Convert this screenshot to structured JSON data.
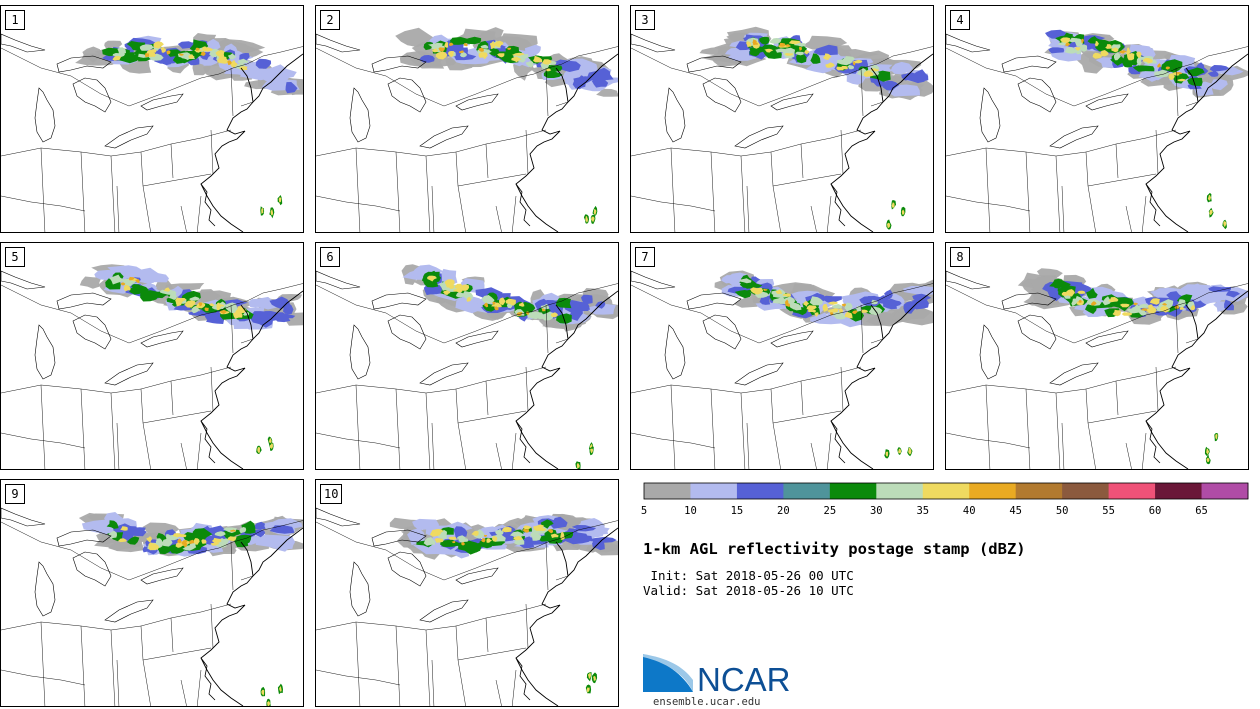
{
  "panels": [
    {
      "label": "1"
    },
    {
      "label": "2"
    },
    {
      "label": "3"
    },
    {
      "label": "4"
    },
    {
      "label": "5"
    },
    {
      "label": "6"
    },
    {
      "label": "7"
    },
    {
      "label": "8"
    },
    {
      "label": "9"
    },
    {
      "label": "10"
    }
  ],
  "colorbar": {
    "bins": [
      {
        "from": 5,
        "to": 10,
        "color": "#a9a9a9"
      },
      {
        "from": 10,
        "to": 15,
        "color": "#b3bbef"
      },
      {
        "from": 15,
        "to": 20,
        "color": "#5661d6"
      },
      {
        "from": 20,
        "to": 25,
        "color": "#4f949b"
      },
      {
        "from": 25,
        "to": 30,
        "color": "#0b8a0b"
      },
      {
        "from": 30,
        "to": 35,
        "color": "#bcdcb9"
      },
      {
        "from": 35,
        "to": 40,
        "color": "#efda60"
      },
      {
        "from": 40,
        "to": 45,
        "color": "#e9aa22"
      },
      {
        "from": 45,
        "to": 50,
        "color": "#b27a2f"
      },
      {
        "from": 50,
        "to": 55,
        "color": "#8b5a3e"
      },
      {
        "from": 55,
        "to": 60,
        "color": "#ef5278"
      },
      {
        "from": 60,
        "to": 65,
        "color": "#6a1738"
      },
      {
        "from": 65,
        "to": 70,
        "color": "#b04ca6"
      }
    ],
    "tick_labels": [
      "5",
      "10",
      "15",
      "20",
      "25",
      "30",
      "35",
      "40",
      "45",
      "50",
      "55",
      "60",
      "65"
    ]
  },
  "title": "1-km AGL reflectivity postage stamp (dBZ)",
  "init_line": " Init: Sat 2018-05-26 00 UTC",
  "valid_line": "Valid: Sat 2018-05-26 10 UTC",
  "logo_text": "NCAR",
  "url": "ensemble.ucar.edu",
  "colors": {
    "line": "#000000",
    "logo_blue": "#0d4f95",
    "logo_light": "#2c8ad1"
  }
}
